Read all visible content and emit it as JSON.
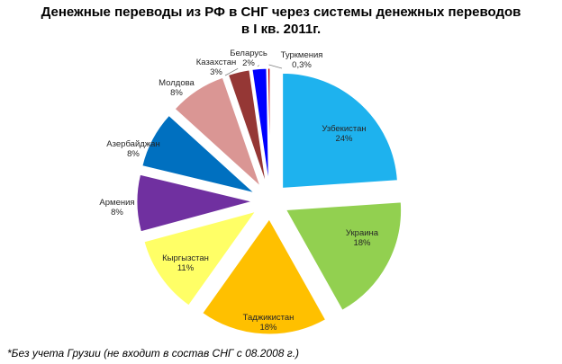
{
  "chart_data": {
    "type": "pie",
    "title_line1": "Денежные переводы из РФ  в СНГ  через системы денежных переводов",
    "title_line2": "в I кв. 2011г.",
    "slices": [
      {
        "label": "Узбекистан",
        "value_label": "24%",
        "value": 24,
        "color": "#1EB2EE"
      },
      {
        "label": "Украина",
        "value_label": "18%",
        "value": 18,
        "color": "#92D050"
      },
      {
        "label": "Таджикистан",
        "value_label": "18%",
        "value": 18,
        "color": "#FFC000"
      },
      {
        "label": "Кыргызстан",
        "value_label": "11%",
        "value": 11,
        "color": "#FFFF66"
      },
      {
        "label": "Армения",
        "value_label": "8%",
        "value": 8,
        "color": "#7030A0"
      },
      {
        "label": "Азербайджан",
        "value_label": "8%",
        "value": 8,
        "color": "#0070C0"
      },
      {
        "label": "Молдова",
        "value_label": "8%",
        "value": 8,
        "color": "#DA9694"
      },
      {
        "label": "Казахстан",
        "value_label": "3%",
        "value": 3,
        "color": "#953735"
      },
      {
        "label": "Беларусь",
        "value_label": "2%",
        "value": 2,
        "color": "#0000FF"
      },
      {
        "label": "Туркмения",
        "value_label": "0,3%",
        "value": 0.3,
        "color": "#C00000"
      }
    ],
    "legend": "none"
  },
  "footnote": "*Без учета Грузии (не входит в состав СНГ с 08.2008 г.)"
}
